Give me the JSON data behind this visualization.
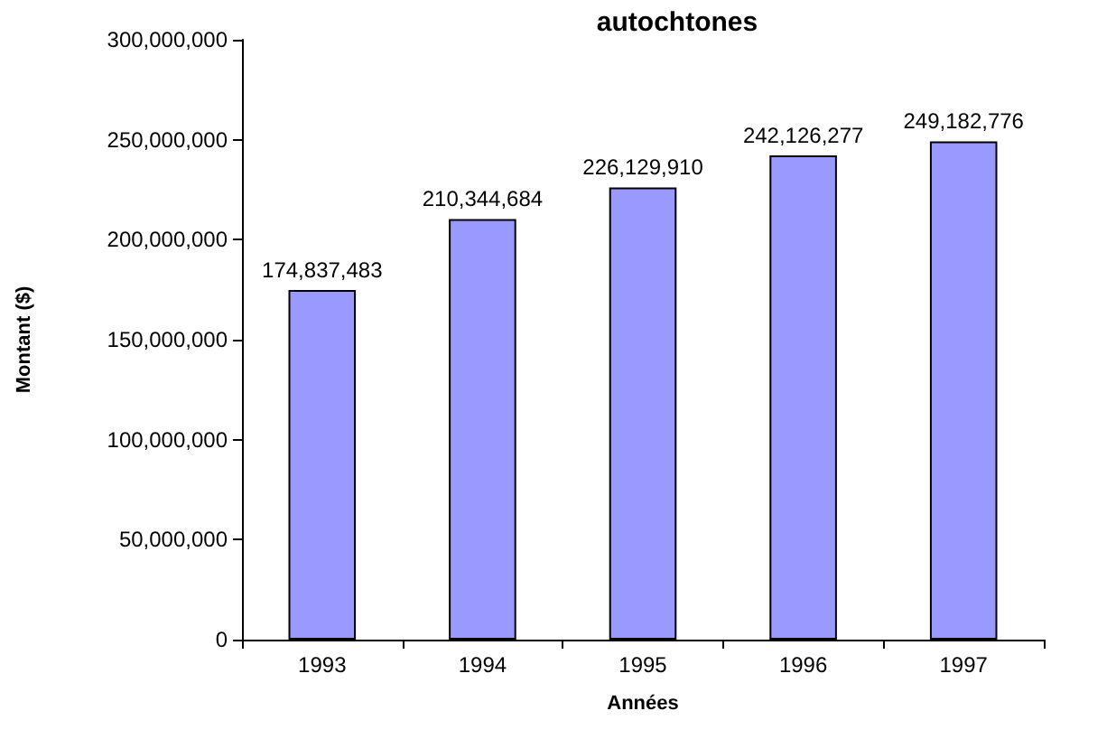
{
  "chart_data": {
    "type": "bar",
    "title": "autochtones",
    "xlabel": "Années",
    "ylabel": "Montant ($)",
    "categories": [
      "1993",
      "1994",
      "1995",
      "1996",
      "1997"
    ],
    "values": [
      174837483,
      210344684,
      226129910,
      242126277,
      249182776
    ],
    "value_labels": [
      "174,837,483",
      "210,344,684",
      "226,129,910",
      "242,126,277",
      "249,182,776"
    ],
    "color": "#9999ff",
    "ylim": [
      0,
      300000000
    ],
    "yticks": [
      0,
      {
        "value": 50000000,
        "label": "50,000,000"
      },
      {
        "value": 100000000,
        "label": "100,000,000"
      },
      {
        "value": 150000000,
        "label": "150,000,000"
      },
      {
        "value": 200000000,
        "label": "200,000,000"
      },
      {
        "value": 250000000,
        "label": "250,000,000"
      },
      {
        "value": 300000000,
        "label": "300,000,000"
      }
    ],
    "grid": false
  }
}
